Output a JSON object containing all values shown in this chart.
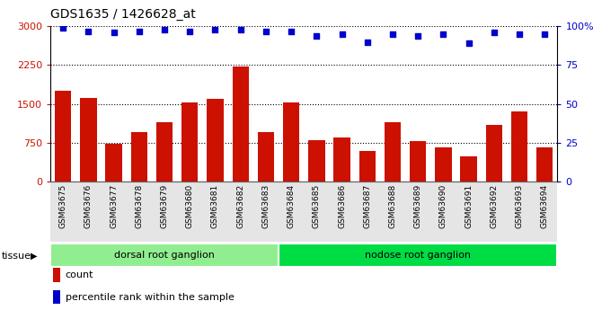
{
  "title": "GDS1635 / 1426628_at",
  "samples": [
    "GSM63675",
    "GSM63676",
    "GSM63677",
    "GSM63678",
    "GSM63679",
    "GSM63680",
    "GSM63681",
    "GSM63682",
    "GSM63683",
    "GSM63684",
    "GSM63685",
    "GSM63686",
    "GSM63687",
    "GSM63688",
    "GSM63689",
    "GSM63690",
    "GSM63691",
    "GSM63692",
    "GSM63693",
    "GSM63694"
  ],
  "counts": [
    1750,
    1620,
    720,
    950,
    1150,
    1520,
    1600,
    2230,
    950,
    1520,
    800,
    850,
    580,
    1150,
    780,
    650,
    480,
    1100,
    1350,
    650
  ],
  "percentiles": [
    99,
    97,
    96,
    97,
    98,
    97,
    98,
    98,
    97,
    97,
    94,
    95,
    90,
    95,
    94,
    95,
    89,
    96,
    95,
    95
  ],
  "tissue_groups": [
    {
      "label": "dorsal root ganglion",
      "start": 0,
      "end": 9,
      "color": "#90EE90"
    },
    {
      "label": "nodose root ganglion",
      "start": 9,
      "end": 20,
      "color": "#00DD44"
    }
  ],
  "bar_color": "#CC1100",
  "dot_color": "#0000CC",
  "left_ylim": [
    0,
    3000
  ],
  "right_ylim": [
    0,
    100
  ],
  "left_yticks": [
    0,
    750,
    1500,
    2250,
    3000
  ],
  "right_yticks": [
    0,
    25,
    50,
    75,
    100
  ],
  "right_yticklabels": [
    "0",
    "25",
    "50",
    "75",
    "100%"
  ],
  "grid_color": "black",
  "bg_color": "#ffffff",
  "tissue_label": "tissue",
  "legend_count_label": "count",
  "legend_pct_label": "percentile rank within the sample"
}
